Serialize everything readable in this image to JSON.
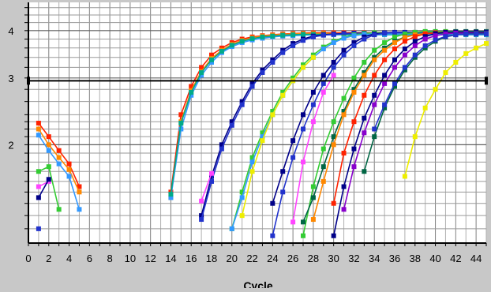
{
  "chart_data": {
    "type": "line",
    "title": "",
    "xlabel": "Cycle",
    "ylabel": "",
    "xlim": [
      0,
      45
    ],
    "ylim": [
      1.1,
      4.75
    ],
    "x_ticks": [
      0,
      2,
      4,
      6,
      8,
      10,
      12,
      14,
      16,
      18,
      20,
      22,
      24,
      26,
      28,
      30,
      32,
      34,
      36,
      38,
      40,
      42,
      44
    ],
    "y_ticks": [
      2,
      3,
      4
    ],
    "log_scale_y": true,
    "grid": true,
    "threshold": 2.95,
    "legend": "none",
    "series": [
      {
        "color": "#ff2200",
        "x": [
          14,
          15,
          16,
          17,
          18,
          19,
          20,
          21,
          22,
          23,
          24,
          25,
          26,
          27,
          28,
          29,
          30,
          31,
          32,
          33,
          34,
          35,
          36,
          37,
          38,
          39,
          40,
          41,
          42,
          43,
          44,
          45
        ],
        "y": [
          1.5,
          2.4,
          2.85,
          3.2,
          3.45,
          3.6,
          3.72,
          3.8,
          3.85,
          3.88,
          3.9,
          3.92,
          3.93,
          3.94,
          3.95,
          3.95,
          3.95,
          3.95,
          3.95,
          3.95,
          3.95,
          3.95,
          3.95,
          3.95,
          3.95,
          3.95,
          3.95,
          3.95,
          3.95,
          3.95,
          3.95,
          3.95
        ]
      },
      {
        "color": "#ff8800",
        "x": [
          14,
          15,
          16,
          17,
          18,
          19,
          20,
          21,
          22,
          23,
          24,
          25,
          26,
          27,
          28,
          29,
          30,
          31,
          32,
          33,
          34,
          35,
          36,
          37,
          38,
          39,
          40,
          41,
          42,
          43,
          44,
          45
        ],
        "y": [
          1.45,
          2.3,
          2.78,
          3.12,
          3.38,
          3.55,
          3.68,
          3.77,
          3.83,
          3.87,
          3.89,
          3.91,
          3.92,
          3.93,
          3.93,
          3.93,
          3.93,
          3.93,
          3.93,
          3.93,
          3.93,
          3.93,
          3.93,
          3.93,
          3.93,
          3.93,
          3.93,
          3.93,
          3.93,
          3.93,
          3.93,
          3.93
        ]
      },
      {
        "color": "#3399ff",
        "x": [
          14,
          15,
          16,
          17,
          18,
          19,
          20,
          21,
          22,
          23,
          24,
          25,
          26,
          27,
          28,
          29,
          30,
          31,
          32,
          33,
          34,
          35,
          36,
          37,
          38,
          39,
          40,
          41,
          42,
          43,
          44,
          45
        ],
        "y": [
          1.45,
          2.2,
          2.7,
          3.05,
          3.3,
          3.5,
          3.63,
          3.72,
          3.78,
          3.82,
          3.85,
          3.87,
          3.88,
          3.89,
          3.9,
          3.9,
          3.9,
          3.9,
          3.9,
          3.9,
          3.9,
          3.9,
          3.9,
          3.9,
          3.9,
          3.9,
          3.9,
          3.9,
          3.9,
          3.9,
          3.9,
          3.9
        ]
      },
      {
        "color": "#00aa88",
        "x": [
          14,
          15,
          16,
          17,
          18,
          19,
          20,
          21,
          22,
          23,
          24,
          25,
          26,
          27,
          28,
          29,
          30,
          31,
          32,
          33,
          34,
          35,
          36,
          37,
          38,
          39,
          40,
          41,
          42,
          43,
          44,
          45
        ],
        "y": [
          1.48,
          2.28,
          2.75,
          3.1,
          3.35,
          3.53,
          3.66,
          3.75,
          3.81,
          3.85,
          3.87,
          3.89,
          3.9,
          3.91,
          3.91,
          3.91,
          3.91,
          3.91,
          3.91,
          3.91,
          3.91,
          3.91,
          3.91,
          3.91,
          3.91,
          3.91,
          3.91,
          3.91,
          3.91,
          3.91,
          3.91,
          3.91
        ]
      },
      {
        "color": "#000088",
        "x": [
          17,
          18,
          19,
          20,
          21,
          22,
          23,
          24,
          25,
          26,
          27,
          28,
          29,
          30,
          31,
          32,
          33,
          34,
          35,
          36,
          37,
          38,
          39,
          40,
          41,
          42,
          43,
          44,
          45
        ],
        "y": [
          1.3,
          1.65,
          2.0,
          2.3,
          2.6,
          2.9,
          3.15,
          3.35,
          3.55,
          3.7,
          3.8,
          3.87,
          3.9,
          3.92,
          3.93,
          3.94,
          3.94,
          3.94,
          3.94,
          3.94,
          3.94,
          3.94,
          3.94,
          3.94,
          3.94,
          3.94,
          3.94,
          3.94,
          3.94
        ]
      },
      {
        "color": "#2233cc",
        "x": [
          17,
          18,
          19,
          20,
          21,
          22,
          23,
          24,
          25,
          26,
          27,
          28,
          29,
          30,
          31,
          32,
          33,
          34,
          35,
          36,
          37,
          38,
          39,
          40,
          41,
          42,
          43,
          44,
          45
        ],
        "y": [
          1.27,
          1.6,
          1.95,
          2.25,
          2.55,
          2.85,
          3.1,
          3.3,
          3.5,
          3.65,
          3.77,
          3.85,
          3.89,
          3.91,
          3.92,
          3.93,
          3.93,
          3.93,
          3.93,
          3.93,
          3.93,
          3.93,
          3.93,
          3.93,
          3.93,
          3.93,
          3.93,
          3.93,
          3.93
        ]
      },
      {
        "color": "#ff44ff",
        "x": [
          17,
          18
        ],
        "y": [
          1.42,
          1.68
        ]
      },
      {
        "color": "#33cc33",
        "x": [
          20,
          21,
          22,
          23,
          24,
          25,
          26,
          27,
          28,
          29,
          30,
          31,
          32,
          33,
          34,
          35,
          36,
          37,
          38,
          39,
          40,
          41,
          42,
          43,
          44,
          45
        ],
        "y": [
          1.2,
          1.5,
          1.85,
          2.15,
          2.45,
          2.75,
          3.0,
          3.25,
          3.45,
          3.62,
          3.75,
          3.84,
          3.9,
          3.93,
          3.95,
          3.95,
          3.95,
          3.95,
          3.95,
          3.95,
          3.95,
          3.95,
          3.95,
          3.95,
          3.95,
          3.95
        ]
      },
      {
        "color": "#3399ff",
        "x": [
          20,
          21,
          22,
          23,
          24,
          25,
          26,
          27,
          28,
          29,
          30,
          31,
          32,
          33,
          34,
          35,
          36,
          37,
          38,
          39,
          40,
          41,
          42,
          43,
          44,
          45
        ],
        "y": [
          1.2,
          1.45,
          1.8,
          2.1,
          2.4,
          2.7,
          2.95,
          3.2,
          3.4,
          3.58,
          3.72,
          3.82,
          3.88,
          3.91,
          3.92,
          3.92,
          3.92,
          3.92,
          3.92,
          3.92,
          3.92,
          3.92,
          3.92,
          3.92,
          3.92,
          3.92
        ]
      },
      {
        "color": "#eeee00",
        "x": [
          21,
          22,
          23,
          24,
          25,
          26,
          27,
          28
        ],
        "y": [
          1.3,
          1.7,
          2.05,
          2.4,
          2.7,
          2.95,
          3.2,
          3.4
        ]
      },
      {
        "color": "#000088",
        "x": [
          24,
          25,
          26,
          27,
          28,
          29,
          30,
          31,
          32,
          33,
          34,
          35,
          36,
          37,
          38,
          39,
          40,
          41,
          42,
          43,
          44,
          45
        ],
        "y": [
          1.4,
          1.7,
          2.05,
          2.4,
          2.75,
          3.05,
          3.3,
          3.55,
          3.72,
          3.85,
          3.92,
          3.95,
          3.96,
          3.96,
          3.96,
          3.96,
          3.96,
          3.96,
          3.96,
          3.96,
          3.96,
          3.96
        ]
      },
      {
        "color": "#2233cc",
        "x": [
          24,
          25,
          26,
          27,
          28,
          29,
          30,
          31,
          32,
          33,
          34,
          35,
          36,
          37,
          38,
          39,
          40,
          41,
          42,
          43,
          44,
          45
        ],
        "y": [
          1.15,
          1.5,
          1.85,
          2.2,
          2.55,
          2.9,
          3.2,
          3.45,
          3.65,
          3.8,
          3.9,
          3.94,
          3.95,
          3.95,
          3.95,
          3.95,
          3.95,
          3.95,
          3.95,
          3.95,
          3.95,
          3.95
        ]
      },
      {
        "color": "#ff44ff",
        "x": [
          26,
          27,
          28,
          29,
          30
        ],
        "y": [
          1.25,
          1.8,
          2.3,
          2.75,
          3.05
        ]
      },
      {
        "color": "#33cc33",
        "x": [
          27,
          28,
          29,
          30,
          31,
          32,
          33,
          34,
          35,
          36,
          37,
          38,
          39,
          40,
          41,
          42,
          43,
          44,
          45
        ],
        "y": [
          1.15,
          1.55,
          1.95,
          2.3,
          2.65,
          3.0,
          3.3,
          3.55,
          3.72,
          3.85,
          3.92,
          3.96,
          3.98,
          3.98,
          3.98,
          3.98,
          3.98,
          3.98,
          3.98
        ]
      },
      {
        "color": "#006644",
        "x": [
          27,
          28,
          29,
          30,
          31,
          32,
          33,
          34,
          35,
          36,
          37,
          38,
          39,
          40,
          41,
          42,
          43,
          44,
          45
        ],
        "y": [
          1.25,
          1.45,
          1.75,
          2.1,
          2.45,
          2.8,
          3.1,
          3.4,
          3.6,
          3.75,
          3.85,
          3.9,
          3.93,
          3.94,
          3.94,
          3.94,
          3.94,
          3.94,
          3.94
        ]
      },
      {
        "color": "#ff8800",
        "x": [
          28,
          29,
          30,
          31,
          32,
          33,
          34,
          35,
          36,
          37,
          38,
          39,
          40,
          41,
          42,
          43,
          44,
          45
        ],
        "y": [
          1.27,
          1.6,
          2.0,
          2.4,
          2.75,
          3.05,
          3.35,
          3.55,
          3.72,
          3.84,
          3.9,
          3.93,
          3.95,
          3.95,
          3.95,
          3.95,
          3.95,
          3.95
        ]
      },
      {
        "color": "#ff2200",
        "x": [
          30,
          31,
          32,
          33,
          34,
          35,
          36,
          37,
          38,
          39,
          40,
          41,
          42,
          43,
          44,
          45
        ],
        "y": [
          1.4,
          1.9,
          2.3,
          2.7,
          3.05,
          3.35,
          3.58,
          3.75,
          3.86,
          3.92,
          3.95,
          3.96,
          3.96,
          3.96,
          3.96,
          3.96
        ]
      },
      {
        "color": "#000088",
        "x": [
          30,
          31,
          32,
          33,
          34,
          35,
          36,
          37,
          38,
          39,
          40,
          41,
          42,
          43,
          44,
          45
        ],
        "y": [
          1.15,
          1.55,
          1.95,
          2.35,
          2.7,
          3.05,
          3.35,
          3.58,
          3.75,
          3.86,
          3.93,
          3.96,
          3.97,
          3.97,
          3.97,
          3.97
        ]
      },
      {
        "color": "#8800cc",
        "x": [
          31,
          32,
          33,
          34,
          35,
          36,
          37,
          38,
          39,
          40,
          41,
          42,
          43,
          44,
          45
        ],
        "y": [
          1.35,
          1.75,
          2.15,
          2.55,
          2.9,
          3.2,
          3.45,
          3.65,
          3.8,
          3.88,
          3.92,
          3.94,
          3.94,
          3.94,
          3.94
        ]
      },
      {
        "color": "#006644",
        "x": [
          33,
          34,
          35,
          36,
          37,
          38,
          39,
          40,
          41,
          42,
          43,
          44,
          45
        ],
        "y": [
          1.7,
          2.1,
          2.5,
          2.85,
          3.15,
          3.4,
          3.6,
          3.75,
          3.85,
          3.9,
          3.92,
          3.93,
          3.93
        ]
      },
      {
        "color": "#2233cc",
        "x": [
          34,
          35,
          36,
          37,
          38,
          39,
          40,
          41,
          42,
          43,
          44,
          45
        ],
        "y": [
          2.2,
          2.55,
          2.9,
          3.2,
          3.45,
          3.65,
          3.78,
          3.86,
          3.9,
          3.92,
          3.92,
          3.92
        ]
      },
      {
        "color": "#eeee00",
        "x": [
          37,
          38,
          39,
          40,
          41,
          42,
          43,
          44,
          45
        ],
        "y": [
          1.65,
          2.1,
          2.5,
          2.8,
          3.1,
          3.3,
          3.48,
          3.6,
          3.7
        ]
      },
      {
        "color": "#ff2200",
        "x": [
          1,
          2,
          3,
          4,
          5
        ],
        "y": [
          2.28,
          2.1,
          1.93,
          1.78,
          1.55
        ]
      },
      {
        "color": "#ff8800",
        "x": [
          1,
          2,
          3,
          4,
          5
        ],
        "y": [
          2.2,
          2.0,
          1.85,
          1.72,
          1.5
        ]
      },
      {
        "color": "#3399ff",
        "x": [
          1,
          2,
          3,
          4,
          5
        ],
        "y": [
          2.12,
          1.93,
          1.78,
          1.65,
          1.35
        ]
      },
      {
        "color": "#33cc33",
        "x": [
          1,
          2,
          3
        ],
        "y": [
          1.7,
          1.75,
          1.35
        ]
      },
      {
        "color": "#ff44ff",
        "x": [
          1,
          2
        ],
        "y": [
          1.55,
          1.6
        ]
      },
      {
        "color": "#000088",
        "x": [
          1,
          2
        ],
        "y": [
          1.45,
          1.62
        ]
      },
      {
        "color": "#2233cc",
        "x": [
          1
        ],
        "y": [
          1.2
        ]
      }
    ]
  }
}
